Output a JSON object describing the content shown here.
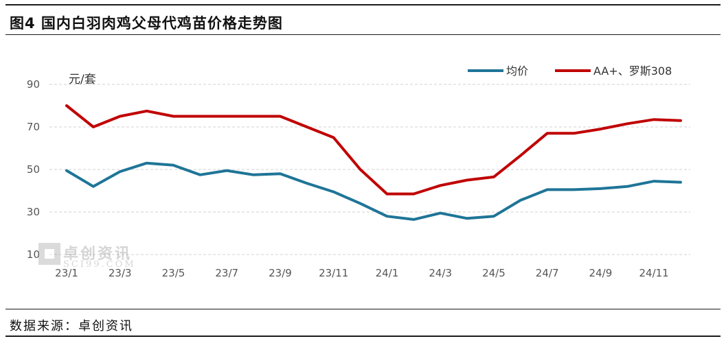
{
  "header": {
    "title": "图4 国内白羽肉鸡父母代鸡苗价格走势图"
  },
  "footer": {
    "source": "数据来源：卓创资讯"
  },
  "watermark": {
    "name_cn": "卓创资讯",
    "name_en": "SCI99.COM",
    "icon": "sci99-logo-icon"
  },
  "chart_data": {
    "type": "line",
    "title": "图4 国内白羽肉鸡父母代鸡苗价格走势图",
    "ylabel": "元/套",
    "xlabel": "",
    "ylim": [
      10,
      90
    ],
    "yticks": [
      10,
      30,
      50,
      70,
      90
    ],
    "grid": true,
    "grid_style": "dashed horizontal",
    "legend_position": "top-right",
    "x": [
      "23/1",
      "23/2",
      "23/3",
      "23/4",
      "23/5",
      "23/6",
      "23/7",
      "23/8",
      "23/9",
      "23/10",
      "23/11",
      "23/12",
      "24/1",
      "24/2",
      "24/3",
      "24/4",
      "24/5",
      "24/6",
      "24/7",
      "24/8",
      "24/9",
      "24/10",
      "24/11",
      "24/12"
    ],
    "xtick_labels": [
      "23/1",
      "23/3",
      "23/5",
      "23/7",
      "23/9",
      "23/11",
      "24/1",
      "24/3",
      "24/5",
      "24/7",
      "24/9",
      "24/11"
    ],
    "series": [
      {
        "name": "均价",
        "color": "#1f7597",
        "values": [
          49.5,
          42,
          49,
          53,
          52,
          47.5,
          49.5,
          47.5,
          48,
          43.5,
          39.5,
          34,
          28,
          26.5,
          29.5,
          27,
          28,
          35.5,
          40.5,
          40.5,
          41,
          42,
          44.5,
          44
        ]
      },
      {
        "name": "AA+、罗斯308",
        "color": "#c00000",
        "values": [
          80,
          70,
          75,
          77.5,
          75,
          75,
          75,
          75,
          75,
          70,
          65,
          50,
          38.5,
          38.5,
          42.5,
          45,
          46.5,
          56.5,
          67,
          67,
          69,
          71.5,
          73.5,
          73
        ]
      }
    ]
  }
}
